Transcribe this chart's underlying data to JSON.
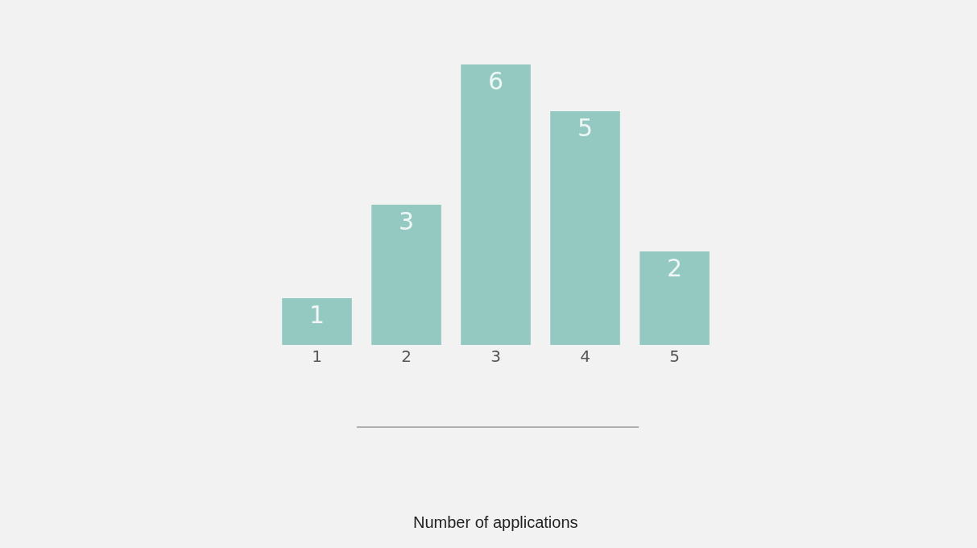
{
  "chart_data": {
    "type": "bar",
    "annotations": [
      "Number of applications"
    ],
    "categories": [
      "1",
      "2",
      "3",
      "4",
      "5"
    ],
    "values": [
      1,
      3,
      6,
      5,
      2
    ],
    "color": "#93c9c1",
    "data_labels": true
  }
}
